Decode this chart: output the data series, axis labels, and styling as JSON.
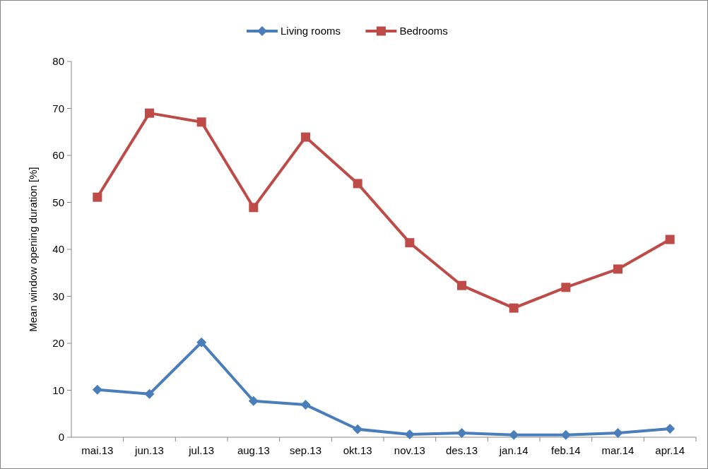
{
  "chart_data": {
    "type": "line",
    "ylabel": "Mean window opening duration [%]",
    "categories": [
      "mai.13",
      "jun.13",
      "jul.13",
      "aug.13",
      "sep.13",
      "okt.13",
      "nov.13",
      "des.13",
      "jan.14",
      "feb.14",
      "mar.14",
      "apr.14"
    ],
    "series": [
      {
        "name": "Living rooms",
        "color": "#4a7ebb",
        "marker": "diamond",
        "values": [
          10.1,
          9.2,
          20.2,
          7.7,
          6.9,
          1.7,
          0.6,
          0.9,
          0.5,
          0.5,
          0.9,
          1.8
        ]
      },
      {
        "name": "Bedrooms",
        "color": "#be4b48",
        "marker": "square",
        "values": [
          51.1,
          69.0,
          67.1,
          48.9,
          63.9,
          54.0,
          41.4,
          32.3,
          27.5,
          31.9,
          35.8,
          42.1
        ]
      }
    ],
    "ylim": [
      0,
      80
    ],
    "yticks": [
      0,
      10,
      20,
      30,
      40,
      50,
      60,
      70,
      80
    ],
    "grid": false,
    "legend": "top",
    "line_style": "solid"
  }
}
